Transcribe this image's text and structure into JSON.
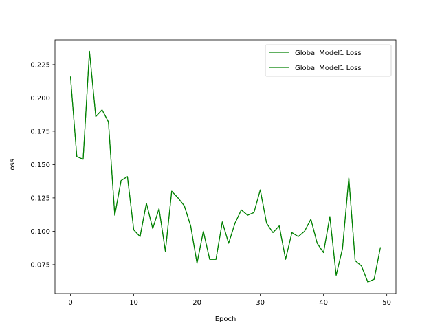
{
  "chart_data": {
    "type": "line",
    "title": "",
    "xlabel": "Epoch",
    "ylabel": "Loss",
    "xlim": [
      -2.45,
      51.45
    ],
    "ylim": [
      0.0533,
      0.2435
    ],
    "xticks": [
      0,
      10,
      20,
      30,
      40,
      50
    ],
    "yticks": [
      0.075,
      0.1,
      0.125,
      0.15,
      0.175,
      0.2,
      0.225
    ],
    "ytick_labels": [
      "0.075",
      "0.100",
      "0.125",
      "0.150",
      "0.175",
      "0.200",
      "0.225"
    ],
    "grid": false,
    "legend_position": "top-right",
    "series": [
      {
        "name": "Global Model1 Loss",
        "color": "#008000",
        "x": [
          0,
          1,
          2,
          3,
          4,
          5,
          6,
          7,
          8,
          9,
          10,
          11,
          12,
          13,
          14,
          15,
          16,
          17,
          18,
          19,
          20,
          21,
          22,
          23,
          24,
          25,
          26,
          27,
          28,
          29,
          30,
          31,
          32,
          33,
          34,
          35,
          36,
          37,
          38,
          39,
          40,
          41,
          42,
          43,
          44,
          45,
          46,
          47,
          48,
          49
        ],
        "values": [
          0.216,
          0.156,
          0.154,
          0.235,
          0.186,
          0.191,
          0.182,
          0.112,
          0.138,
          0.141,
          0.101,
          0.096,
          0.121,
          0.102,
          0.117,
          0.085,
          0.13,
          0.125,
          0.119,
          0.104,
          0.076,
          0.1,
          0.079,
          0.079,
          0.107,
          0.091,
          0.106,
          0.116,
          0.112,
          0.114,
          0.131,
          0.106,
          0.099,
          0.104,
          0.079,
          0.099,
          0.096,
          0.1,
          0.109,
          0.091,
          0.084,
          0.111,
          0.067,
          0.087,
          0.14,
          0.078,
          0.074,
          0.062,
          0.064,
          0.088
        ]
      },
      {
        "name": "Global Model1 Loss",
        "color": "#008000",
        "x": [
          0,
          1,
          2,
          3,
          4,
          5,
          6,
          7,
          8,
          9,
          10,
          11,
          12,
          13,
          14,
          15,
          16,
          17,
          18,
          19,
          20,
          21,
          22,
          23,
          24,
          25,
          26,
          27,
          28,
          29,
          30,
          31,
          32,
          33,
          34,
          35,
          36,
          37,
          38,
          39,
          40,
          41,
          42,
          43,
          44,
          45,
          46,
          47,
          48,
          49
        ],
        "values": [
          0.216,
          0.156,
          0.154,
          0.235,
          0.186,
          0.191,
          0.182,
          0.112,
          0.138,
          0.141,
          0.101,
          0.096,
          0.121,
          0.102,
          0.117,
          0.085,
          0.13,
          0.125,
          0.119,
          0.104,
          0.076,
          0.1,
          0.079,
          0.079,
          0.107,
          0.091,
          0.106,
          0.116,
          0.112,
          0.114,
          0.131,
          0.106,
          0.099,
          0.104,
          0.079,
          0.099,
          0.096,
          0.1,
          0.109,
          0.091,
          0.084,
          0.111,
          0.067,
          0.087,
          0.14,
          0.078,
          0.074,
          0.062,
          0.064,
          0.088
        ]
      }
    ]
  }
}
